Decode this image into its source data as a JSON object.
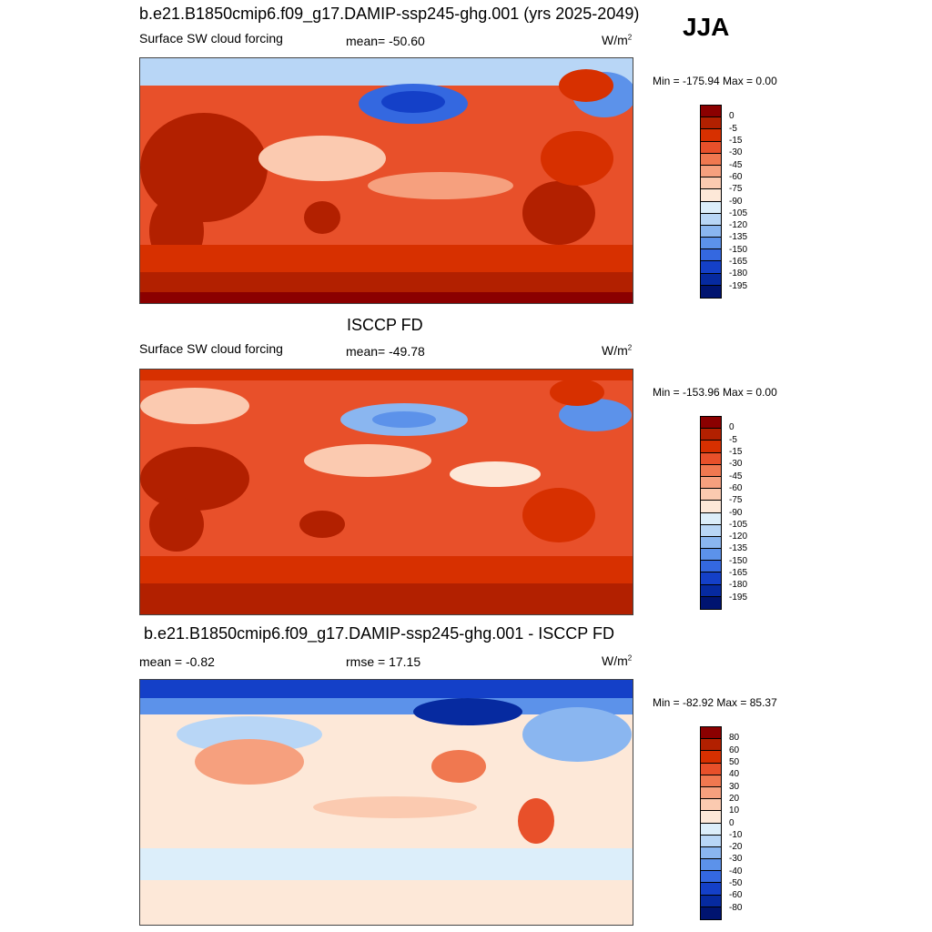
{
  "season": "JJA",
  "panels": [
    {
      "title": "b.e21.B1850cmip6.f09_g17.DAMIP-ssp245-ghg.001 (yrs 2025-2049)",
      "left_label": "Surface SW cloud forcing",
      "center_label": "mean= -50.60",
      "units": "W/m",
      "units_exp": "2",
      "minmax": "Min = -175.94 Max =   0.00",
      "colorbar_labels": [
        "0",
        "-5",
        "-15",
        "-30",
        "-45",
        "-60",
        "-75",
        "-90",
        "-105",
        "-120",
        "-135",
        "-150",
        "-165",
        "-180",
        "-195"
      ],
      "colorbar_colors": [
        "#8b0000",
        "#b22000",
        "#d73000",
        "#e8502a",
        "#f07850",
        "#f6a07e",
        "#fbcab0",
        "#fde8d8",
        "#dceefa",
        "#b8d6f6",
        "#8ab6f0",
        "#5c92ea",
        "#3468e0",
        "#1440c8",
        "#062aa0",
        "#001470"
      ]
    },
    {
      "title": "ISCCP FD",
      "left_label": "Surface SW cloud forcing",
      "center_label": "mean= -49.78",
      "units": "W/m",
      "units_exp": "2",
      "minmax": "Min = -153.96 Max =   0.00",
      "colorbar_labels": [
        "0",
        "-5",
        "-15",
        "-30",
        "-45",
        "-60",
        "-75",
        "-90",
        "-105",
        "-120",
        "-135",
        "-150",
        "-165",
        "-180",
        "-195"
      ],
      "colorbar_colors": [
        "#8b0000",
        "#b22000",
        "#d73000",
        "#e8502a",
        "#f07850",
        "#f6a07e",
        "#fbcab0",
        "#fde8d8",
        "#dceefa",
        "#b8d6f6",
        "#8ab6f0",
        "#5c92ea",
        "#3468e0",
        "#1440c8",
        "#062aa0",
        "#001470"
      ]
    },
    {
      "title": "b.e21.B1850cmip6.f09_g17.DAMIP-ssp245-ghg.001 - ISCCP FD",
      "left_label": "mean =  -0.82",
      "center_label": "rmse =  17.15",
      "units": "W/m",
      "units_exp": "2",
      "minmax": "Min = -82.92 Max =  85.37",
      "colorbar_labels": [
        "80",
        "60",
        "50",
        "40",
        "30",
        "20",
        "10",
        "0",
        "-10",
        "-20",
        "-30",
        "-40",
        "-50",
        "-60",
        "-80"
      ],
      "colorbar_colors": [
        "#8b0000",
        "#b22000",
        "#d73000",
        "#e8502a",
        "#f07850",
        "#f6a07e",
        "#fbcab0",
        "#fde8d8",
        "#dceefa",
        "#b8d6f6",
        "#8ab6f0",
        "#5c92ea",
        "#3468e0",
        "#1440c8",
        "#062aa0",
        "#001470"
      ]
    }
  ]
}
